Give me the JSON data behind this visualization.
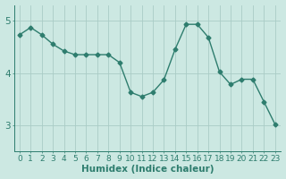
{
  "x": [
    0,
    1,
    2,
    3,
    4,
    5,
    6,
    7,
    8,
    9,
    10,
    11,
    12,
    13,
    14,
    15,
    16,
    17,
    18,
    19,
    20,
    21,
    22,
    23
  ],
  "y": [
    4.73,
    4.87,
    4.73,
    4.55,
    4.42,
    4.35,
    4.35,
    4.35,
    4.35,
    4.2,
    3.63,
    3.55,
    3.63,
    3.87,
    4.45,
    4.93,
    4.93,
    4.68,
    4.02,
    3.78,
    3.88,
    3.88,
    3.45,
    3.02
  ],
  "line_color": "#2e7d6e",
  "marker": "D",
  "marker_size": 2.5,
  "line_width": 1.0,
  "bg_color": "#cce8e2",
  "grid_color": "#aaccc6",
  "xlabel": "Humidex (Indice chaleur)",
  "xlabel_fontsize": 7.5,
  "tick_fontsize": 6.5,
  "yticks": [
    3,
    4,
    5
  ],
  "ylim": [
    2.5,
    5.3
  ],
  "xlim": [
    -0.5,
    23.5
  ]
}
